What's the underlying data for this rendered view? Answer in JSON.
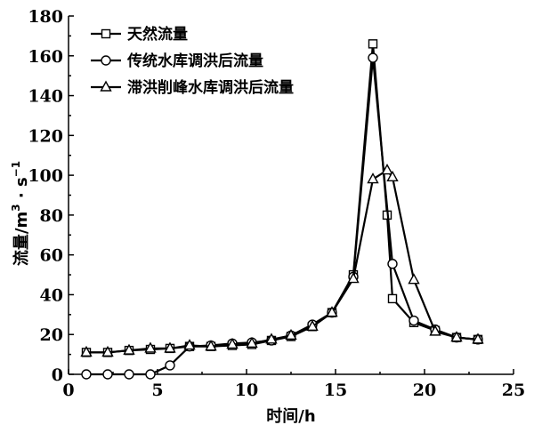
{
  "chart_data": {
    "type": "line",
    "xlabel": "时间/h",
    "ylabel": "流量/m³·s⁻¹",
    "ylabel_parts": {
      "main": "流量/m",
      "sup1": "3",
      "mid": " · s",
      "sup2": "−1"
    },
    "xlim": [
      0,
      25
    ],
    "ylim": [
      0,
      180
    ],
    "xticks": [
      0,
      5,
      10,
      15,
      20,
      25
    ],
    "yticks": [
      0,
      20,
      40,
      60,
      80,
      100,
      120,
      140,
      160,
      180
    ],
    "xtick_labels": [
      "0",
      "5",
      "10",
      "15",
      "20",
      "25"
    ],
    "ytick_labels": [
      "0",
      "20",
      "40",
      "60",
      "80",
      "100",
      "120",
      "140",
      "160",
      "180"
    ],
    "grid": false,
    "legend_position": "top-left",
    "series": [
      {
        "name": "天然流量",
        "marker": "square",
        "x": [
          1,
          2.2,
          3.4,
          4.6,
          5.7,
          6.8,
          8,
          9.2,
          10.3,
          11.4,
          12.5,
          13.7,
          14.8,
          16,
          17.1,
          17.9,
          18.2,
          19.4,
          20.6,
          21.8,
          23
        ],
        "y": [
          11,
          11,
          12,
          12.5,
          13,
          14,
          14,
          14.5,
          15,
          17,
          19,
          24,
          31,
          50,
          166,
          80,
          38,
          26,
          22,
          18.5,
          17.5
        ]
      },
      {
        "name": "传统水库调洪后流量",
        "marker": "circle",
        "x": [
          1,
          2.2,
          3.4,
          4.6,
          5.7,
          6.8,
          8,
          9.2,
          10.3,
          11.4,
          12.5,
          13.7,
          14.8,
          16,
          17.1,
          18.2,
          19.4,
          20.6,
          21.8,
          23
        ],
        "y": [
          0,
          0,
          0,
          0,
          4.5,
          14,
          14.5,
          15.5,
          16,
          17,
          19.5,
          25,
          31,
          49,
          159,
          55.5,
          27,
          22.5,
          18.5,
          17.5
        ]
      },
      {
        "name": "滞洪削峰水库调洪后流量",
        "marker": "triangle",
        "x": [
          1,
          2.2,
          3.4,
          4.6,
          5.7,
          6.8,
          8,
          9.2,
          10.3,
          11.4,
          12.5,
          13.7,
          14.8,
          16,
          17.1,
          17.9,
          18.2,
          19.4,
          20.6,
          21.8,
          23
        ],
        "y": [
          11,
          11,
          12,
          13,
          13,
          14.5,
          14,
          15,
          15.5,
          17.5,
          19.5,
          24,
          31,
          48,
          98,
          102.5,
          99,
          47.5,
          21.5,
          18.5,
          17.5
        ]
      }
    ]
  }
}
